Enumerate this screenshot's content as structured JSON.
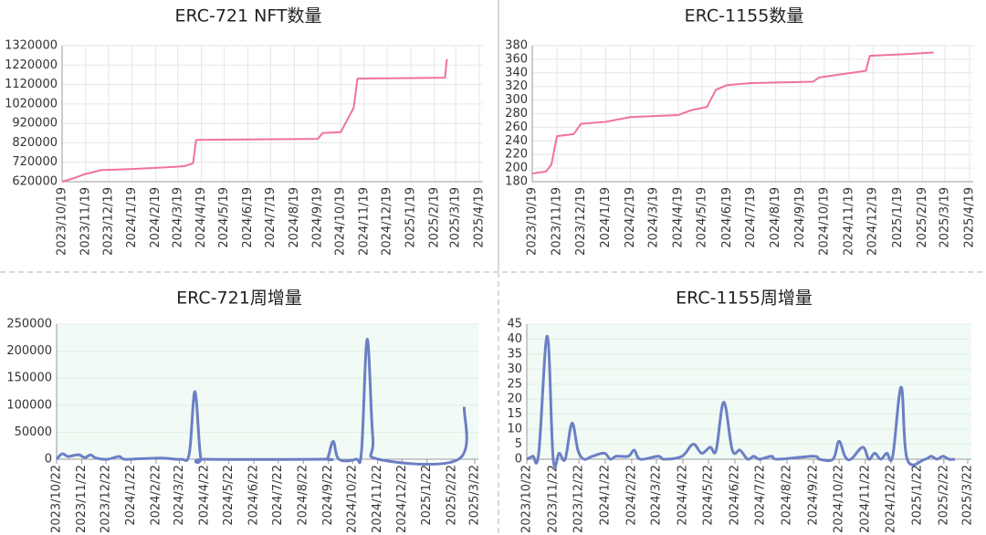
{
  "chart_data": [
    {
      "type": "line",
      "title": "ERC-721 NFT数量",
      "x": [
        "2023/10/19",
        "2023/11/5",
        "2023/11/19",
        "2023/12/10",
        "2024/1/19",
        "2024/3/10",
        "2024/3/28",
        "2024/4/8",
        "2024/4/12",
        "2024/9/19",
        "2024/9/25",
        "2024/10/19",
        "2024/11/5",
        "2024/11/10",
        "2025/3/5",
        "2025/3/7",
        "2025/3/8"
      ],
      "series": [
        {
          "color": "#f0729a",
          "values": [
            620000,
            640000,
            660000,
            680000,
            685000,
            695000,
            700000,
            715000,
            835000,
            840000,
            870000,
            875000,
            1000000,
            1150000,
            1155000,
            1240000,
            1250000
          ]
        }
      ],
      "xlim": [
        "2023/10/19",
        "2025/4/19"
      ],
      "xticks": [
        "2023/10/19",
        "2023/11/19",
        "2023/12/19",
        "2024/1/19",
        "2024/2/19",
        "2024/3/19",
        "2024/4/19",
        "2024/5/19",
        "2024/6/19",
        "2024/7/19",
        "2024/8/19",
        "2024/9/19",
        "2024/10/19",
        "2024/11/19",
        "2024/12/19",
        "2025/1/19",
        "2025/2/19",
        "2025/3/19",
        "2025/4/19"
      ],
      "ylim": [
        620000,
        1320000
      ],
      "yticks": [
        620000,
        720000,
        820000,
        920000,
        1020000,
        1120000,
        1220000,
        1320000
      ],
      "xgrid": true,
      "ygrid": true,
      "smooth": false
    },
    {
      "type": "line",
      "title": "ERC-1155数量",
      "x": [
        "2023/10/19",
        "2023/11/5",
        "2023/11/12",
        "2023/11/19",
        "2023/12/10",
        "2023/12/19",
        "2024/1/19",
        "2024/2/19",
        "2024/4/19",
        "2024/5/5",
        "2024/5/25",
        "2024/6/5",
        "2024/6/19",
        "2024/7/19",
        "2024/10/5",
        "2024/10/12",
        "2024/11/10",
        "2024/12/10",
        "2024/12/15",
        "2025/2/5",
        "2025/3/5"
      ],
      "series": [
        {
          "color": "#f0729a",
          "values": [
            192,
            195,
            205,
            247,
            250,
            265,
            268,
            275,
            278,
            285,
            290,
            315,
            322,
            325,
            327,
            333,
            338,
            343,
            365,
            368,
            370
          ]
        }
      ],
      "xlim": [
        "2023/10/19",
        "2025/4/19"
      ],
      "xticks": [
        "2023/10/19",
        "2023/11/19",
        "2023/12/19",
        "2024/1/19",
        "2024/2/19",
        "2024/3/19",
        "2024/4/19",
        "2024/5/19",
        "2024/6/19",
        "2024/7/19",
        "2024/8/19",
        "2024/9/19",
        "2024/10/19",
        "2024/11/19",
        "2024/12/19",
        "2025/1/19",
        "2025/2/19",
        "2025/3/19",
        "2025/4/19"
      ],
      "ylim": [
        180,
        380
      ],
      "yticks": [
        180,
        200,
        220,
        240,
        260,
        280,
        300,
        320,
        340,
        360,
        380
      ],
      "xgrid": true,
      "ygrid": true,
      "smooth": false
    },
    {
      "type": "line",
      "title": "ERC-721周增量",
      "x": [
        "2023/10/22",
        "2023/10/29",
        "2023/11/5",
        "2023/11/12",
        "2023/11/19",
        "2023/11/26",
        "2023/12/3",
        "2023/12/10",
        "2023/12/24",
        "2024/1/7",
        "2024/1/14",
        "2024/2/4",
        "2024/3/3",
        "2024/3/24",
        "2024/4/3",
        "2024/4/10",
        "2024/4/17",
        "2024/4/24",
        "2024/9/14",
        "2024/9/21",
        "2024/9/28",
        "2024/10/5",
        "2024/10/26",
        "2024/11/2",
        "2024/11/9",
        "2024/11/16",
        "2024/11/23",
        "2025/3/2",
        "2025/3/9"
      ],
      "series": [
        {
          "color": "#6b7fc4",
          "values": [
            0,
            10000,
            5000,
            7000,
            8000,
            3000,
            8000,
            2000,
            0,
            5000,
            0,
            1000,
            2000,
            0,
            10000,
            125000,
            5000,
            0,
            0,
            2000,
            33000,
            0,
            0,
            15000,
            222000,
            40000,
            0,
            0,
            97000
          ]
        }
      ],
      "xlim": [
        "2023/10/22",
        "2025/3/22"
      ],
      "xticks": [
        "2023/10/22",
        "2023/11/22",
        "2023/12/22",
        "2024/1/22",
        "2024/2/22",
        "2024/3/22",
        "2024/4/22",
        "2024/5/22",
        "2024/6/22",
        "2024/7/22",
        "2024/8/22",
        "2024/9/22",
        "2024/10/22",
        "2024/11/22",
        "2024/12/22",
        "2025/1/22",
        "2025/2/22",
        "2025/3/22"
      ],
      "ylim": [
        0,
        250000
      ],
      "yticks": [
        0,
        50000,
        100000,
        150000,
        200000,
        250000
      ],
      "xgrid": false,
      "ygrid": true,
      "smooth": true,
      "plot_background": "#f1faf5"
    },
    {
      "type": "line",
      "title": "ERC-1155周增量",
      "x": [
        "2023/10/22",
        "2023/10/29",
        "2023/11/5",
        "2023/11/15",
        "2023/11/22",
        "2023/11/29",
        "2023/12/6",
        "2023/12/14",
        "2023/12/21",
        "2023/12/28",
        "2024/1/7",
        "2024/1/21",
        "2024/1/28",
        "2024/2/4",
        "2024/2/18",
        "2024/2/25",
        "2024/3/3",
        "2024/3/24",
        "2024/3/31",
        "2024/4/21",
        "2024/5/4",
        "2024/5/14",
        "2024/5/24",
        "2024/5/31",
        "2024/6/9",
        "2024/6/19",
        "2024/6/28",
        "2024/7/7",
        "2024/7/14",
        "2024/7/21",
        "2024/8/4",
        "2024/8/11",
        "2024/9/22",
        "2024/9/29",
        "2024/10/15",
        "2024/10/22",
        "2024/10/29",
        "2024/11/5",
        "2024/11/19",
        "2024/11/26",
        "2024/12/3",
        "2024/12/10",
        "2024/12/17",
        "2024/12/24",
        "2025/1/3",
        "2025/1/10",
        "2025/1/31",
        "2025/2/7",
        "2025/2/14",
        "2025/2/21",
        "2025/2/28",
        "2025/3/7"
      ],
      "series": [
        {
          "color": "#6b7fc4",
          "values": [
            0,
            1,
            2,
            41,
            0,
            2,
            0,
            12,
            3,
            0,
            1,
            2,
            0,
            1,
            1,
            3,
            0,
            1,
            0,
            1,
            5,
            2,
            4,
            3,
            19,
            3,
            3,
            0,
            1,
            0,
            1,
            0,
            1,
            0,
            0,
            6,
            1,
            0,
            4,
            0,
            2,
            0,
            2,
            1,
            24,
            0,
            0,
            1,
            0,
            1,
            0,
            0
          ]
        }
      ],
      "xlim": [
        "2023/10/22",
        "2025/3/22"
      ],
      "xticks": [
        "2023/10/22",
        "2023/11/22",
        "2023/12/22",
        "2024/1/22",
        "2024/2/22",
        "2024/3/22",
        "2024/4/22",
        "2024/5/22",
        "2024/6/22",
        "2024/7/22",
        "2024/8/22",
        "2024/9/22",
        "2024/10/22",
        "2024/11/22",
        "2024/12/22",
        "2025/1/22",
        "2025/2/22",
        "2025/3/22"
      ],
      "ylim": [
        0,
        45
      ],
      "yticks": [
        0,
        5,
        10,
        15,
        20,
        25,
        30,
        35,
        40,
        45
      ],
      "xgrid": false,
      "ygrid": true,
      "smooth": true,
      "plot_background": "#f1faf5"
    }
  ]
}
